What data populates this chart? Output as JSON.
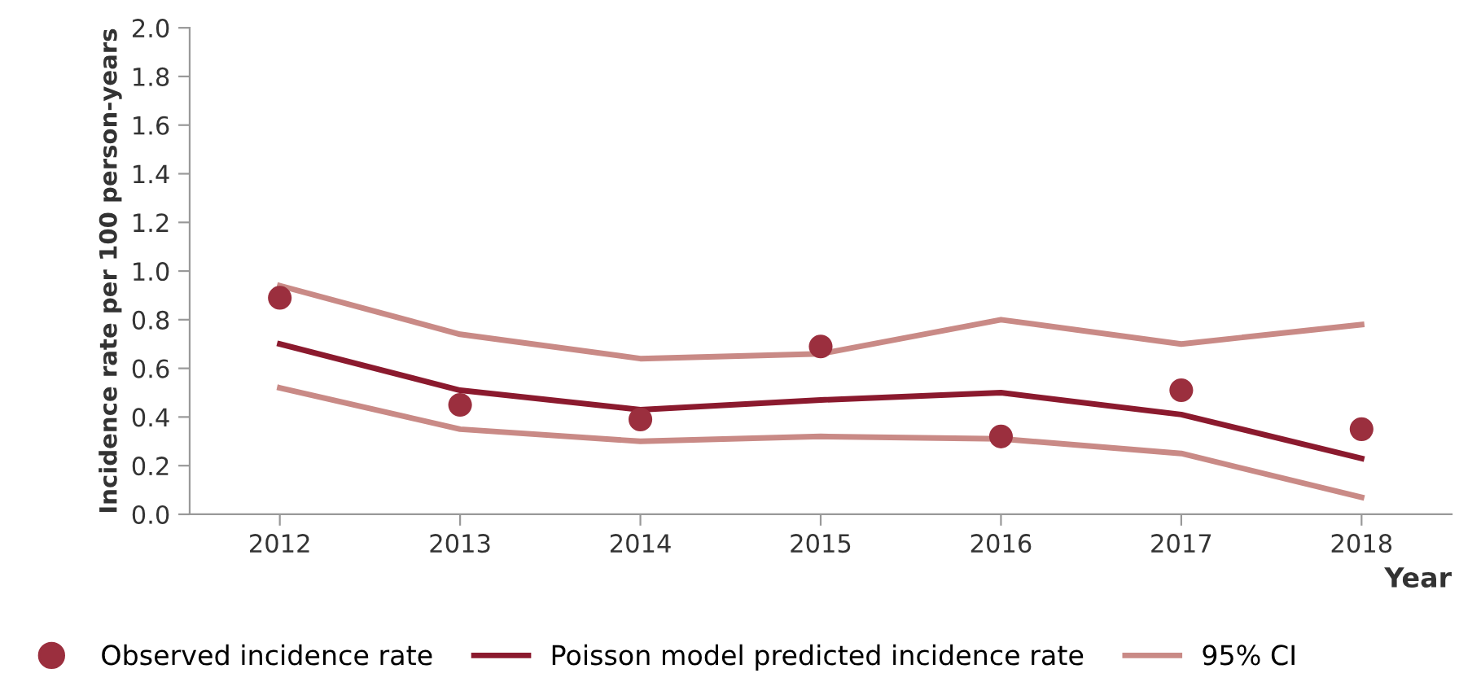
{
  "chart_data": {
    "type": "line",
    "xlabel": "Year",
    "ylabel": "Incidence rate per 100 person-years",
    "categories": [
      "2012",
      "2013",
      "2014",
      "2015",
      "2016",
      "2017",
      "2018"
    ],
    "series": [
      {
        "name": "Observed incidence rate",
        "type": "scatter",
        "color": "#9b2f3e",
        "values": [
          0.89,
          0.45,
          0.39,
          0.69,
          0.32,
          0.51,
          0.35
        ]
      },
      {
        "name": "Poisson model predicted incidence rate",
        "color": "#8b1a2e",
        "values": [
          0.7,
          0.51,
          0.43,
          0.47,
          0.5,
          0.41,
          0.23
        ]
      },
      {
        "name": "95% CI",
        "color": "#c98a86",
        "values": [
          0.94,
          0.74,
          0.64,
          0.66,
          0.8,
          0.7,
          0.78
        ]
      },
      {
        "color": "#c98a86",
        "values": [
          0.52,
          0.35,
          0.3,
          0.32,
          0.31,
          0.25,
          0.07
        ]
      }
    ],
    "ylim": [
      0,
      2.0
    ],
    "yticks": [
      {
        "value": 0,
        "label": "0.0"
      },
      {
        "value": 0.2,
        "label": "0.2"
      },
      {
        "value": 0.4,
        "label": "0.4"
      },
      {
        "value": 0.6,
        "label": "0.6"
      },
      {
        "value": 0.8,
        "label": "0.8"
      },
      {
        "value": 1.0,
        "label": "1.0"
      },
      {
        "value": 1.2,
        "label": "1.2"
      },
      {
        "value": 1.4,
        "label": "1.4"
      },
      {
        "value": 1.6,
        "label": "1.6"
      },
      {
        "value": 1.8,
        "label": "1.8"
      },
      {
        "value": 2.0,
        "label": "2.0"
      }
    ],
    "grid": false,
    "legend": "bottom"
  }
}
